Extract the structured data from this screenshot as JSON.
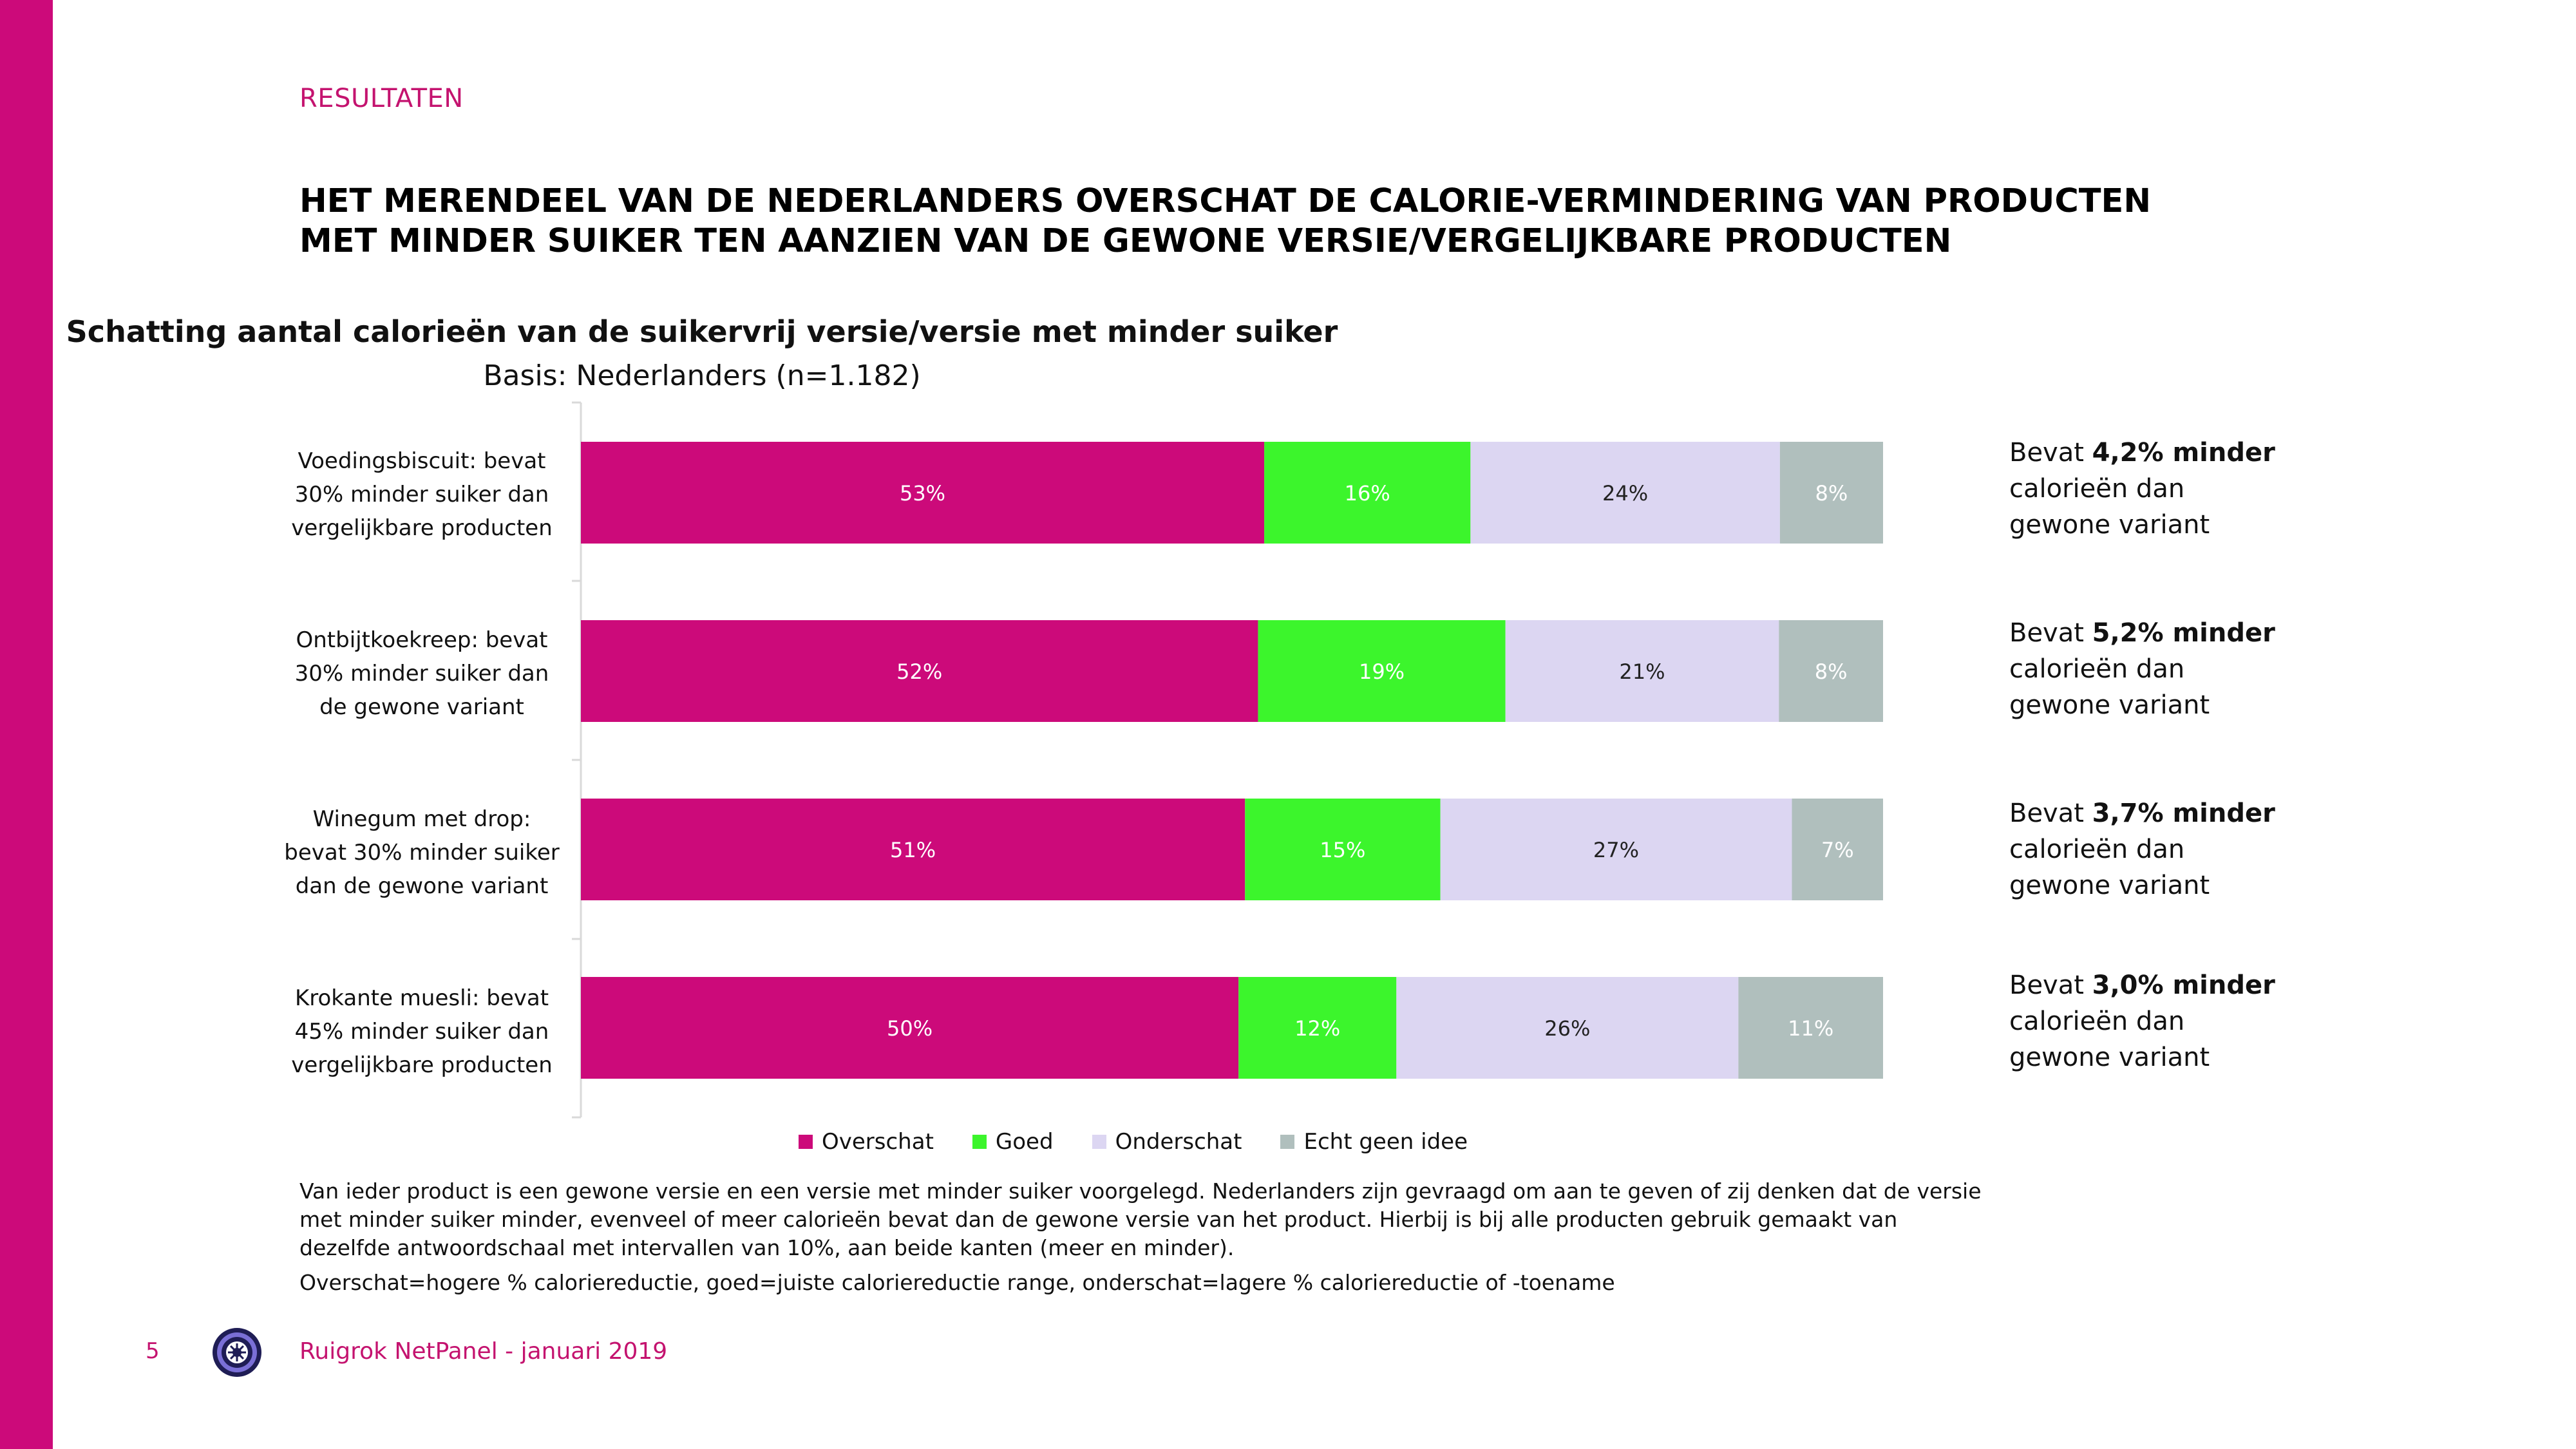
{
  "page": {
    "section": "RESULTATEN",
    "headline_line1": "HET MERENDEEL VAN DE NEDERLANDERS OVERSCHAT DE CALORIE-VERMINDERING VAN PRODUCTEN",
    "headline_line2": "MET MINDER SUIKER TEN AANZIEN VAN DE GEWONE VERSIE/VERGELIJKBARE PRODUCTEN",
    "footnote": "Van ieder product is een gewone versie en een versie met minder suiker voorgelegd. Nederlanders zijn gevraagd om aan te geven of zij denken dat de versie met minder suiker minder, evenveel of meer calorieën bevat dan de gewone versie van het product. Hierbij is bij alle producten gebruik gemaakt van dezelfde antwoordschaal met intervallen van 10%, aan beide kanten (meer en minder).",
    "footnote2": "Overschat=hogere % caloriereductie, goed=juiste caloriereductie range, onderschat=lagere % caloriereductie of -toename",
    "page_number": "5",
    "footer": "Ruigrok NetPanel - januari 2019",
    "accent_color": "#cc0a7a"
  },
  "chart_data": {
    "type": "bar",
    "orientation": "horizontal",
    "stacked": true,
    "title": "Schatting aantal calorieën van de suikervrij versie/versie met minder suiker",
    "subtitle": "Basis: Nederlanders (n=1.182)",
    "categories": [
      [
        "Voedingsbiscuit: bevat",
        "30% minder suiker dan",
        "vergelijkbare producten"
      ],
      [
        "Ontbijtkoekreep: bevat",
        "30% minder suiker dan",
        "de gewone variant"
      ],
      [
        "Winegum met drop:",
        "bevat 30% minder suiker",
        "dan de gewone variant"
      ],
      [
        "Krokante muesli: bevat",
        "45% minder suiker dan",
        "vergelijkbare producten"
      ]
    ],
    "series": [
      {
        "name": "Overschat",
        "color": "#cc0a7a",
        "label_color": "#ffffff",
        "values": [
          53,
          52,
          51,
          50
        ]
      },
      {
        "name": "Goed",
        "color": "#3cf52c",
        "label_color": "#ffffff",
        "values": [
          16,
          19,
          15,
          12
        ]
      },
      {
        "name": "Onderschat",
        "color": "#dcd6f2",
        "label_color": "#222222",
        "values": [
          24,
          21,
          27,
          26
        ]
      },
      {
        "name": "Echt geen idee",
        "color": "#b0bfbd",
        "label_color": "#ffffff",
        "values": [
          8,
          8,
          7,
          11
        ]
      }
    ],
    "value_suffix": "%",
    "xlim": [
      0,
      100
    ],
    "legend_position": "bottom",
    "grid": false
  },
  "notes": [
    {
      "prefix": "Bevat ",
      "bold": "4,2% minder",
      "line2": "calorieën dan",
      "line3": "gewone variant"
    },
    {
      "prefix": "Bevat ",
      "bold": "5,2% minder",
      "line2": "calorieën dan",
      "line3": "gewone variant"
    },
    {
      "prefix": "Bevat ",
      "bold": "3,7% minder",
      "line2": "calorieën dan",
      "line3": "gewone variant"
    },
    {
      "prefix": "Bevat ",
      "bold": "3,0% minder",
      "line2": "calorieën dan",
      "line3": "gewone variant"
    }
  ]
}
